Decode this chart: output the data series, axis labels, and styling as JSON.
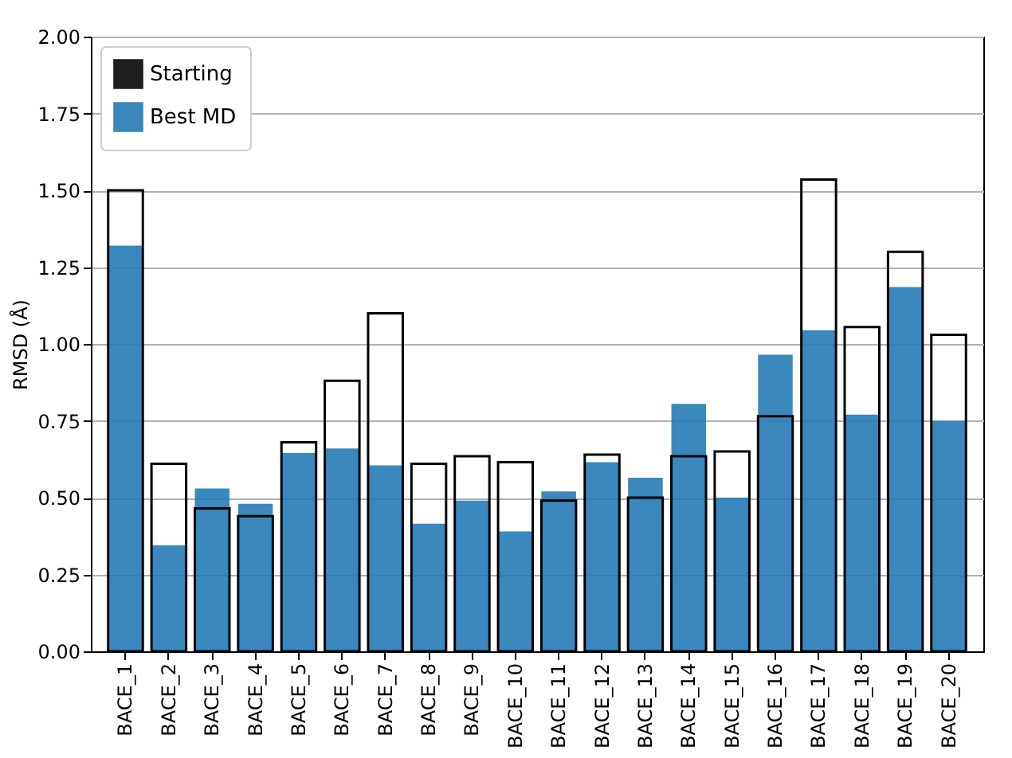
{
  "chart_data": {
    "type": "bar",
    "ylabel": "RMSD (Å)",
    "categories": [
      "BACE_1",
      "BACE_2",
      "BACE_3",
      "BACE_4",
      "BACE_5",
      "BACE_6",
      "BACE_7",
      "BACE_8",
      "BACE_9",
      "BACE_10",
      "BACE_11",
      "BACE_12",
      "BACE_13",
      "BACE_14",
      "BACE_15",
      "BACE_16",
      "BACE_17",
      "BACE_18",
      "BACE_19",
      "BACE_20"
    ],
    "series": [
      {
        "name": "Starting",
        "color": "#000000",
        "values": [
          1.5,
          0.61,
          0.465,
          0.44,
          0.68,
          0.88,
          1.1,
          0.61,
          0.635,
          0.615,
          0.49,
          0.64,
          0.5,
          0.635,
          0.65,
          0.765,
          1.535,
          1.055,
          1.3,
          1.03
        ]
      },
      {
        "name": "Best MD",
        "color": "#1f77b4",
        "values": [
          1.32,
          0.345,
          0.53,
          0.48,
          0.645,
          0.66,
          0.605,
          0.415,
          0.49,
          0.39,
          0.52,
          0.615,
          0.565,
          0.805,
          0.5,
          0.965,
          1.045,
          0.77,
          1.185,
          0.75
        ]
      }
    ],
    "ylim": [
      0,
      2
    ],
    "yticks": [
      {
        "value": 0,
        "label": "0.00"
      },
      {
        "value": 0.25,
        "label": "0.25"
      },
      {
        "value": 0.5,
        "label": "0.50"
      },
      {
        "value": 0.75,
        "label": "0.75"
      },
      {
        "value": 1,
        "label": "1.00"
      },
      {
        "value": 1.25,
        "label": "1.25"
      },
      {
        "value": 1.5,
        "label": "1.50"
      },
      {
        "value": 1.75,
        "label": "1.75"
      },
      {
        "value": 2,
        "label": "2.00"
      }
    ],
    "grid": "y",
    "legend": "top left"
  }
}
